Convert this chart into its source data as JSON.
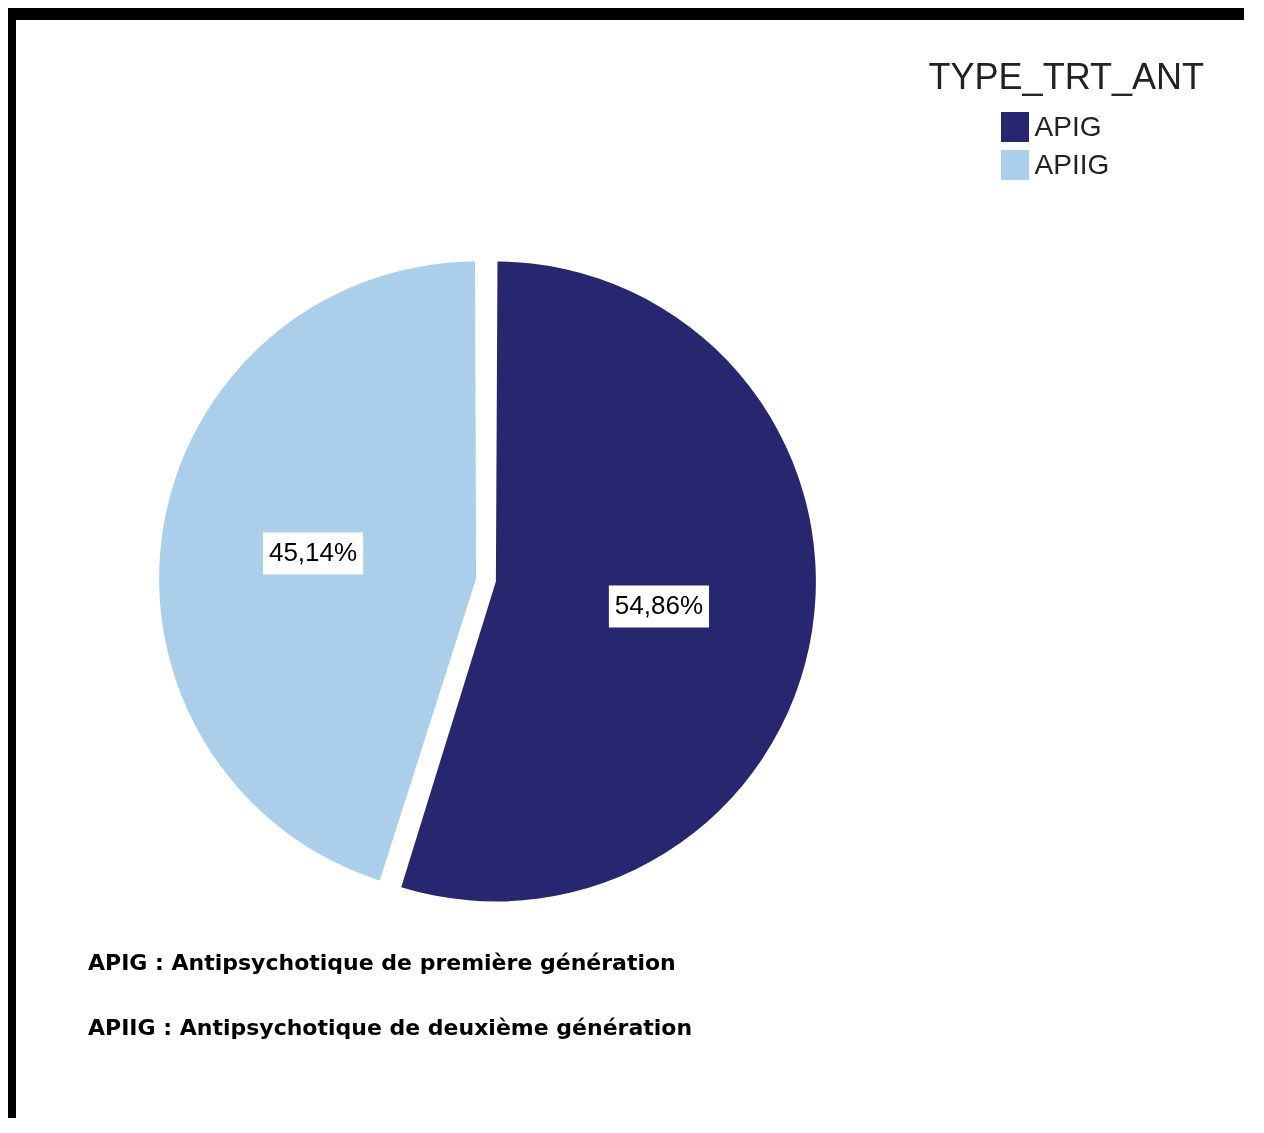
{
  "chart_data": {
    "type": "pie",
    "legend_title": "TYPE_TRT_ANT",
    "categories": [
      "APIG",
      "APIIG"
    ],
    "values": [
      54.86,
      45.14
    ],
    "colors": [
      "#26276e",
      "#abcfeb"
    ],
    "value_labels": [
      "54,86%",
      "45,14%"
    ],
    "legend": "top right",
    "annotations": [
      "APIG : Antipsychotique de première génération",
      "APIIG : Antipsychotique de deuxième génération"
    ]
  }
}
